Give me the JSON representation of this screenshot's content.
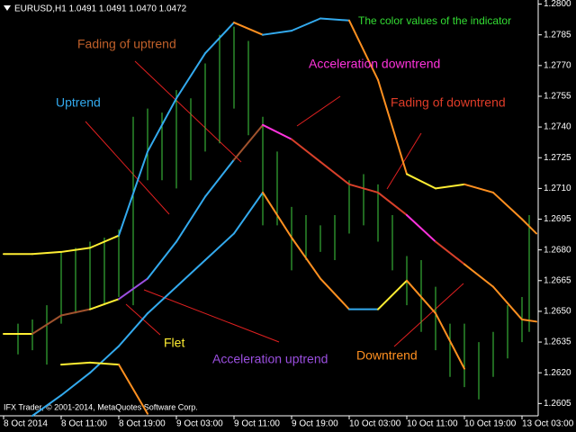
{
  "chart_data": {
    "type": "line",
    "header": "EURUSD,H1 1.0491 1.0491 1.0470 1.0472",
    "footer": "IFX Trader, © 2001-2014, MetaQuotes Software Corp.",
    "grid": false,
    "xlim": [
      -0.5,
      74.25
    ],
    "ylim": [
      1.2599,
      1.2802
    ],
    "yticks": [
      {
        "value": 1.28,
        "label": "1.2800"
      },
      {
        "value": 1.2785,
        "label": "1.2785"
      },
      {
        "value": 1.277,
        "label": "1.2770"
      },
      {
        "value": 1.2755,
        "label": "1.2755"
      },
      {
        "value": 1.274,
        "label": "1.2740"
      },
      {
        "value": 1.2725,
        "label": "1.2725"
      },
      {
        "value": 1.271,
        "label": "1.2710"
      },
      {
        "value": 1.2695,
        "label": "1.2695"
      },
      {
        "value": 1.268,
        "label": "1.2680"
      },
      {
        "value": 1.2665,
        "label": "1.2665"
      },
      {
        "value": 1.265,
        "label": "1.2650"
      },
      {
        "value": 1.2635,
        "label": "1.2635"
      },
      {
        "value": 1.262,
        "label": "1.2620"
      },
      {
        "value": 1.2605,
        "label": "1.2605"
      }
    ],
    "xticks": [
      {
        "value": 0,
        "label": "8 Oct 2014"
      },
      {
        "value": 8,
        "label": "8 Oct 11:00"
      },
      {
        "value": 16,
        "label": "8 Oct 19:00"
      },
      {
        "value": 24,
        "label": "9 Oct 03:00"
      },
      {
        "value": 32,
        "label": "9 Oct 11:00"
      },
      {
        "value": 40,
        "label": "9 Oct 19:00"
      },
      {
        "value": 48,
        "label": "10 Oct 03:00"
      },
      {
        "value": 56,
        "label": "10 Oct 11:00"
      },
      {
        "value": 64,
        "label": "10 Oct 19:00"
      },
      {
        "value": 72,
        "label": "13 Oct 03:00"
      }
    ],
    "bars": {
      "color": "#3fd03f",
      "x": [
        2,
        4,
        6,
        8,
        10,
        12,
        14,
        16,
        18,
        20,
        22,
        24,
        26,
        28,
        30,
        32,
        34,
        36,
        38,
        40,
        42,
        44,
        46,
        48,
        50,
        52,
        54,
        56,
        58,
        60,
        62,
        64,
        66,
        68,
        70,
        72,
        73
      ],
      "high": [
        1.2644,
        1.2646,
        1.2653,
        1.2679,
        1.2681,
        1.2684,
        1.2686,
        1.269,
        1.2745,
        1.2749,
        1.2747,
        1.2758,
        1.2754,
        1.2771,
        1.2785,
        1.2789,
        1.2782,
        1.2745,
        1.2728,
        1.2701,
        1.2697,
        1.2692,
        1.2697,
        1.2714,
        1.2717,
        1.2712,
        1.2697,
        1.2677,
        1.2675,
        1.2662,
        1.2644,
        1.2644,
        1.2635,
        1.264,
        1.2653,
        1.2657,
        1.2697
      ],
      "low": [
        1.2629,
        1.2631,
        1.2624,
        1.2644,
        1.2649,
        1.2651,
        1.2653,
        1.2657,
        1.2653,
        1.2714,
        1.2714,
        1.271,
        1.2714,
        1.2728,
        1.2732,
        1.2749,
        1.2736,
        1.2692,
        1.2692,
        1.267,
        1.2675,
        1.2679,
        1.2675,
        1.2688,
        1.2692,
        1.2684,
        1.267,
        1.2653,
        1.264,
        1.2631,
        1.2618,
        1.2613,
        1.2607,
        1.2618,
        1.2627,
        1.2635,
        1.264
      ]
    },
    "x": [
      0,
      4,
      8,
      12,
      16,
      20,
      24,
      28,
      32,
      36,
      40,
      44,
      48,
      52,
      56,
      60,
      64,
      68,
      72,
      74
    ],
    "series": [
      {
        "values": [
          1.2678,
          1.2678,
          1.2679,
          1.2681,
          1.2687,
          1.2728,
          1.2754,
          1.2776,
          1.2791,
          1.2785,
          1.2787,
          1.2793,
          1.2792,
          1.2763,
          1.2717,
          1.271,
          1.2712,
          1.2708,
          1.2695,
          1.2688
        ],
        "segment_colors": [
          "#ffee33",
          "#ffee33",
          "#ffee33",
          "#ffee33",
          "#ffee33",
          "#33aaee",
          "#33aaee",
          "#33aaee",
          "#33aaee",
          "#ff9020",
          "#33aaee",
          "#33aaee",
          "#33aaee",
          "#ff9020",
          "#ff9020",
          "#ffee33",
          "#ffee33",
          "#ff9020",
          "#ff9020",
          "#ff9020"
        ]
      },
      {
        "values": [
          1.2639,
          1.2639,
          1.2648,
          1.2651,
          1.2656,
          1.2666,
          1.2684,
          1.2706,
          1.2724,
          1.2741,
          1.2734,
          1.2723,
          1.2712,
          1.2708,
          1.2697,
          1.2684,
          1.2673,
          1.2662,
          1.2646,
          1.2645
        ],
        "segment_colors": [
          "#ffee33",
          "#ffee33",
          "#a0522d",
          "#a0522d",
          "#ffee33",
          "#9b4fe0",
          "#33aaee",
          "#33aaee",
          "#33aaee",
          "#a0522d",
          "#ff33dd",
          "#d8402a",
          "#d8402a",
          "#d8402a",
          "#d8402a",
          "#ff33dd",
          "#d8402a",
          "#ff9020",
          "#ff9020",
          "#ff9020"
        ]
      },
      {
        "values": [
          null,
          1.2599,
          1.2609,
          1.262,
          1.2633,
          1.2649,
          1.2662,
          1.2675,
          1.2688,
          1.2708,
          1.2686,
          1.2666,
          1.2651,
          1.2651,
          1.2665,
          1.2649,
          1.2622,
          null,
          null,
          null
        ],
        "segment_colors": [
          "#33aaee",
          "#33aaee",
          "#33aaee",
          "#33aaee",
          "#33aaee",
          "#33aaee",
          "#33aaee",
          "#33aaee",
          "#33aaee",
          "#33aaee",
          "#ff9020",
          "#ff9020",
          "#ff9020",
          "#33aaee",
          "#ffee33",
          "#ff9020",
          "#ff9020",
          "#ff9020",
          "#ff9020",
          "#ff9020"
        ]
      },
      {
        "values": [
          null,
          null,
          1.2624,
          1.2625,
          1.2624,
          1.26,
          null,
          null,
          null,
          null,
          null,
          null,
          null,
          null,
          null,
          null,
          null,
          null,
          null,
          null
        ],
        "segment_colors": [
          "#ffee33",
          "#ffee33",
          "#ffee33",
          "#ffee33",
          "#ffee33",
          "#ff9020",
          "#ff9020",
          "#ff9020",
          "#ff9020",
          "#ff9020",
          "#ff9020",
          "#ff9020",
          "#ff9020",
          "#ff9020",
          "#ff9020",
          "#ff9020",
          "#ff9020",
          "#ff9020",
          "#ff9020",
          "#ff9020"
        ]
      }
    ],
    "annotations": [
      {
        "text": "The color values of the indicator",
        "color": "#33dd33"
      },
      {
        "text": "Fading of uptrend",
        "color": "#c0602a"
      },
      {
        "text": "Uptrend",
        "color": "#33aaee"
      },
      {
        "text": "Acceleration downtrend",
        "color": "#ff33dd"
      },
      {
        "text": "Fading of downtrend",
        "color": "#e03c28"
      },
      {
        "text": "Flet",
        "color": "#ffee33"
      },
      {
        "text": "Acceleration uptrend",
        "color": "#9b4fe0"
      },
      {
        "text": "Downtrend",
        "color": "#ff9020"
      }
    ]
  }
}
